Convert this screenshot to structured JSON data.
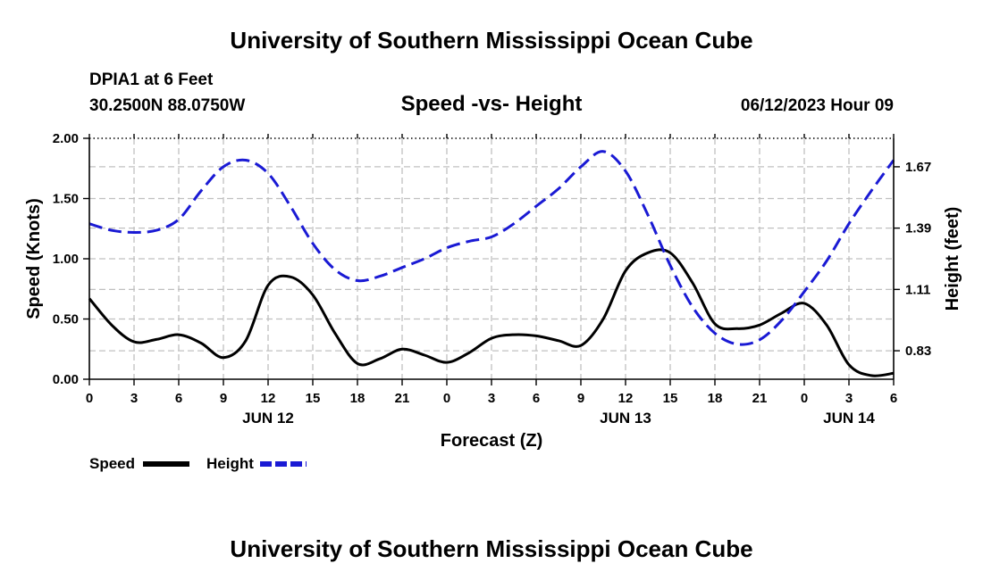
{
  "header": {
    "title": "University of Southern Mississippi Ocean Cube",
    "station": "DPIA1 at 6 Feet",
    "coords": "30.2500N  88.0750W",
    "chart_title": "Speed -vs- Height",
    "datetime": "06/12/2023 Hour 09"
  },
  "footer": {
    "title": "University of Southern Mississippi Ocean Cube"
  },
  "legend": {
    "speed_label": "Speed",
    "height_label": "Height"
  },
  "colors": {
    "speed": "#000000",
    "height": "#1a1ad4"
  },
  "chart_data": {
    "type": "line",
    "title": "Speed -vs- Height",
    "xlabel": "Forecast (Z)",
    "ylabel": "Speed (Knots)",
    "y2label": "Height (feet)",
    "x_unit": "hours from 06/12 00Z",
    "xlim": [
      0,
      54
    ],
    "ylim": [
      0,
      2.0
    ],
    "y2lim": [
      0.7,
      1.8
    ],
    "x_ticks": [
      0,
      3,
      6,
      9,
      12,
      15,
      18,
      21,
      24,
      27,
      30,
      33,
      36,
      39,
      42,
      45,
      48,
      51,
      54
    ],
    "x_tick_labels": [
      "0",
      "3",
      "6",
      "9",
      "12",
      "15",
      "18",
      "21",
      "0",
      "3",
      "6",
      "9",
      "12",
      "15",
      "18",
      "21",
      "0",
      "3",
      "6"
    ],
    "y_ticks": [
      0.0,
      0.5,
      1.0,
      1.5,
      2.0
    ],
    "y_tick_labels": [
      "0.00",
      "0.50",
      "1.00",
      "1.50",
      "2.00"
    ],
    "y2_ticks": [
      0.83,
      1.11,
      1.39,
      1.67
    ],
    "y2_tick_labels": [
      "0.83",
      "1.11",
      "1.39",
      "1.67"
    ],
    "day_labels": [
      {
        "x": 12,
        "label": "JUN 12"
      },
      {
        "x": 36,
        "label": "JUN 13"
      },
      {
        "x": 51,
        "label": "JUN 14"
      }
    ],
    "grid": true,
    "legend": "bottom-left",
    "series": [
      {
        "name": "Speed",
        "axis": "left",
        "style": "solid",
        "x": [
          0,
          1.5,
          3,
          4.5,
          6,
          7.5,
          9,
          10.5,
          12,
          13.5,
          15,
          16.5,
          18,
          19.5,
          21,
          22.5,
          24,
          25.5,
          27,
          28.5,
          30,
          31.5,
          33,
          34.5,
          36,
          37.5,
          39,
          40.5,
          42,
          43.5,
          45,
          46.5,
          48,
          49.5,
          51,
          52.5,
          54
        ],
        "values": [
          0.67,
          0.45,
          0.31,
          0.33,
          0.37,
          0.3,
          0.18,
          0.32,
          0.78,
          0.85,
          0.7,
          0.38,
          0.13,
          0.17,
          0.25,
          0.2,
          0.14,
          0.22,
          0.34,
          0.37,
          0.36,
          0.32,
          0.28,
          0.5,
          0.9,
          1.05,
          1.05,
          0.8,
          0.46,
          0.42,
          0.45,
          0.55,
          0.63,
          0.45,
          0.12,
          0.03,
          0.05
        ]
      },
      {
        "name": "Height",
        "axis": "right",
        "style": "dashed",
        "x": [
          0,
          1.5,
          3,
          4.5,
          6,
          7.5,
          9,
          10.5,
          12,
          13.5,
          15,
          16.5,
          18,
          19.5,
          21,
          22.5,
          24,
          25.5,
          27,
          28.5,
          30,
          31.5,
          33,
          34.5,
          36,
          37.5,
          39,
          40.5,
          42,
          43.5,
          45,
          46.5,
          48,
          49.5,
          51,
          52.5,
          54
        ],
        "values": [
          1.41,
          1.38,
          1.37,
          1.38,
          1.43,
          1.56,
          1.67,
          1.7,
          1.64,
          1.49,
          1.32,
          1.2,
          1.15,
          1.17,
          1.21,
          1.25,
          1.3,
          1.33,
          1.35,
          1.41,
          1.49,
          1.57,
          1.67,
          1.74,
          1.65,
          1.45,
          1.22,
          1.03,
          0.91,
          0.86,
          0.88,
          0.97,
          1.1,
          1.24,
          1.41,
          1.56,
          1.7
        ]
      }
    ]
  }
}
